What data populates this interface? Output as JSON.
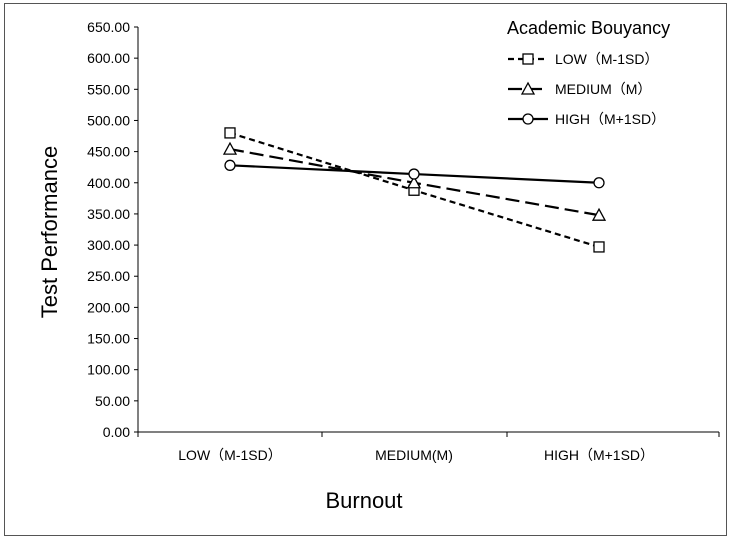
{
  "chart_data": {
    "type": "line",
    "title": "",
    "xlabel": "Burnout",
    "ylabel": "Test Performance",
    "categories": [
      "LOW（M-1SD）",
      "MEDIUM(M)",
      "HIGH（M+1SD）"
    ],
    "ylim": [
      0,
      650
    ],
    "yticks": [
      "0.00",
      "50.00",
      "100.00",
      "150.00",
      "200.00",
      "250.00",
      "300.00",
      "350.00",
      "400.00",
      "450.00",
      "500.00",
      "550.00",
      "600.00",
      "650.00"
    ],
    "legend": {
      "title": "Academic Bouyancy",
      "position": "top-right"
    },
    "grid": false,
    "series": [
      {
        "name": "LOW（M-1SD）",
        "values": [
          480,
          388,
          297
        ],
        "marker": "square",
        "dash": "short-dash"
      },
      {
        "name": "MEDIUM（M）",
        "values": [
          454,
          400,
          348
        ],
        "marker": "triangle",
        "dash": "long-dash"
      },
      {
        "name": "HIGH（M+1SD）",
        "values": [
          428,
          414,
          400
        ],
        "marker": "circle",
        "dash": "solid"
      }
    ]
  }
}
